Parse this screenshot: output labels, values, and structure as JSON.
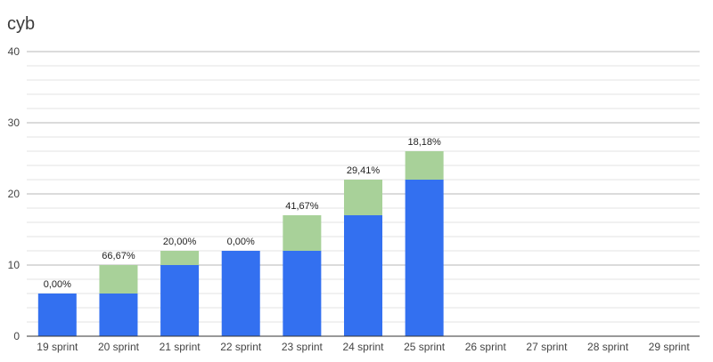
{
  "chart_data": {
    "type": "bar",
    "stacked": true,
    "title": "cyb",
    "xlabel": "",
    "ylabel": "",
    "ylim": [
      0,
      40
    ],
    "yticks": [
      0,
      10,
      20,
      30,
      40
    ],
    "minor_grid": true,
    "grid": true,
    "legend": "none",
    "categories": [
      "19 sprint",
      "20 sprint",
      "21 sprint",
      "22 sprint",
      "23 sprint",
      "24 sprint",
      "25 sprint",
      "26 sprint",
      "27 sprint",
      "28 sprint",
      "29 sprint"
    ],
    "series": [
      {
        "color": "#3370f0",
        "values": [
          6,
          6,
          10,
          12,
          12,
          17,
          22,
          null,
          null,
          null,
          null
        ]
      },
      {
        "color": "#a8d199",
        "values": [
          0,
          4,
          2,
          0,
          5,
          5,
          4,
          null,
          null,
          null,
          null
        ]
      }
    ],
    "data_labels": [
      "0,00%",
      "66,67%",
      "20,00%",
      "0,00%",
      "41,67%",
      "29,41%",
      "18,18%",
      "",
      "",
      "",
      ""
    ]
  }
}
